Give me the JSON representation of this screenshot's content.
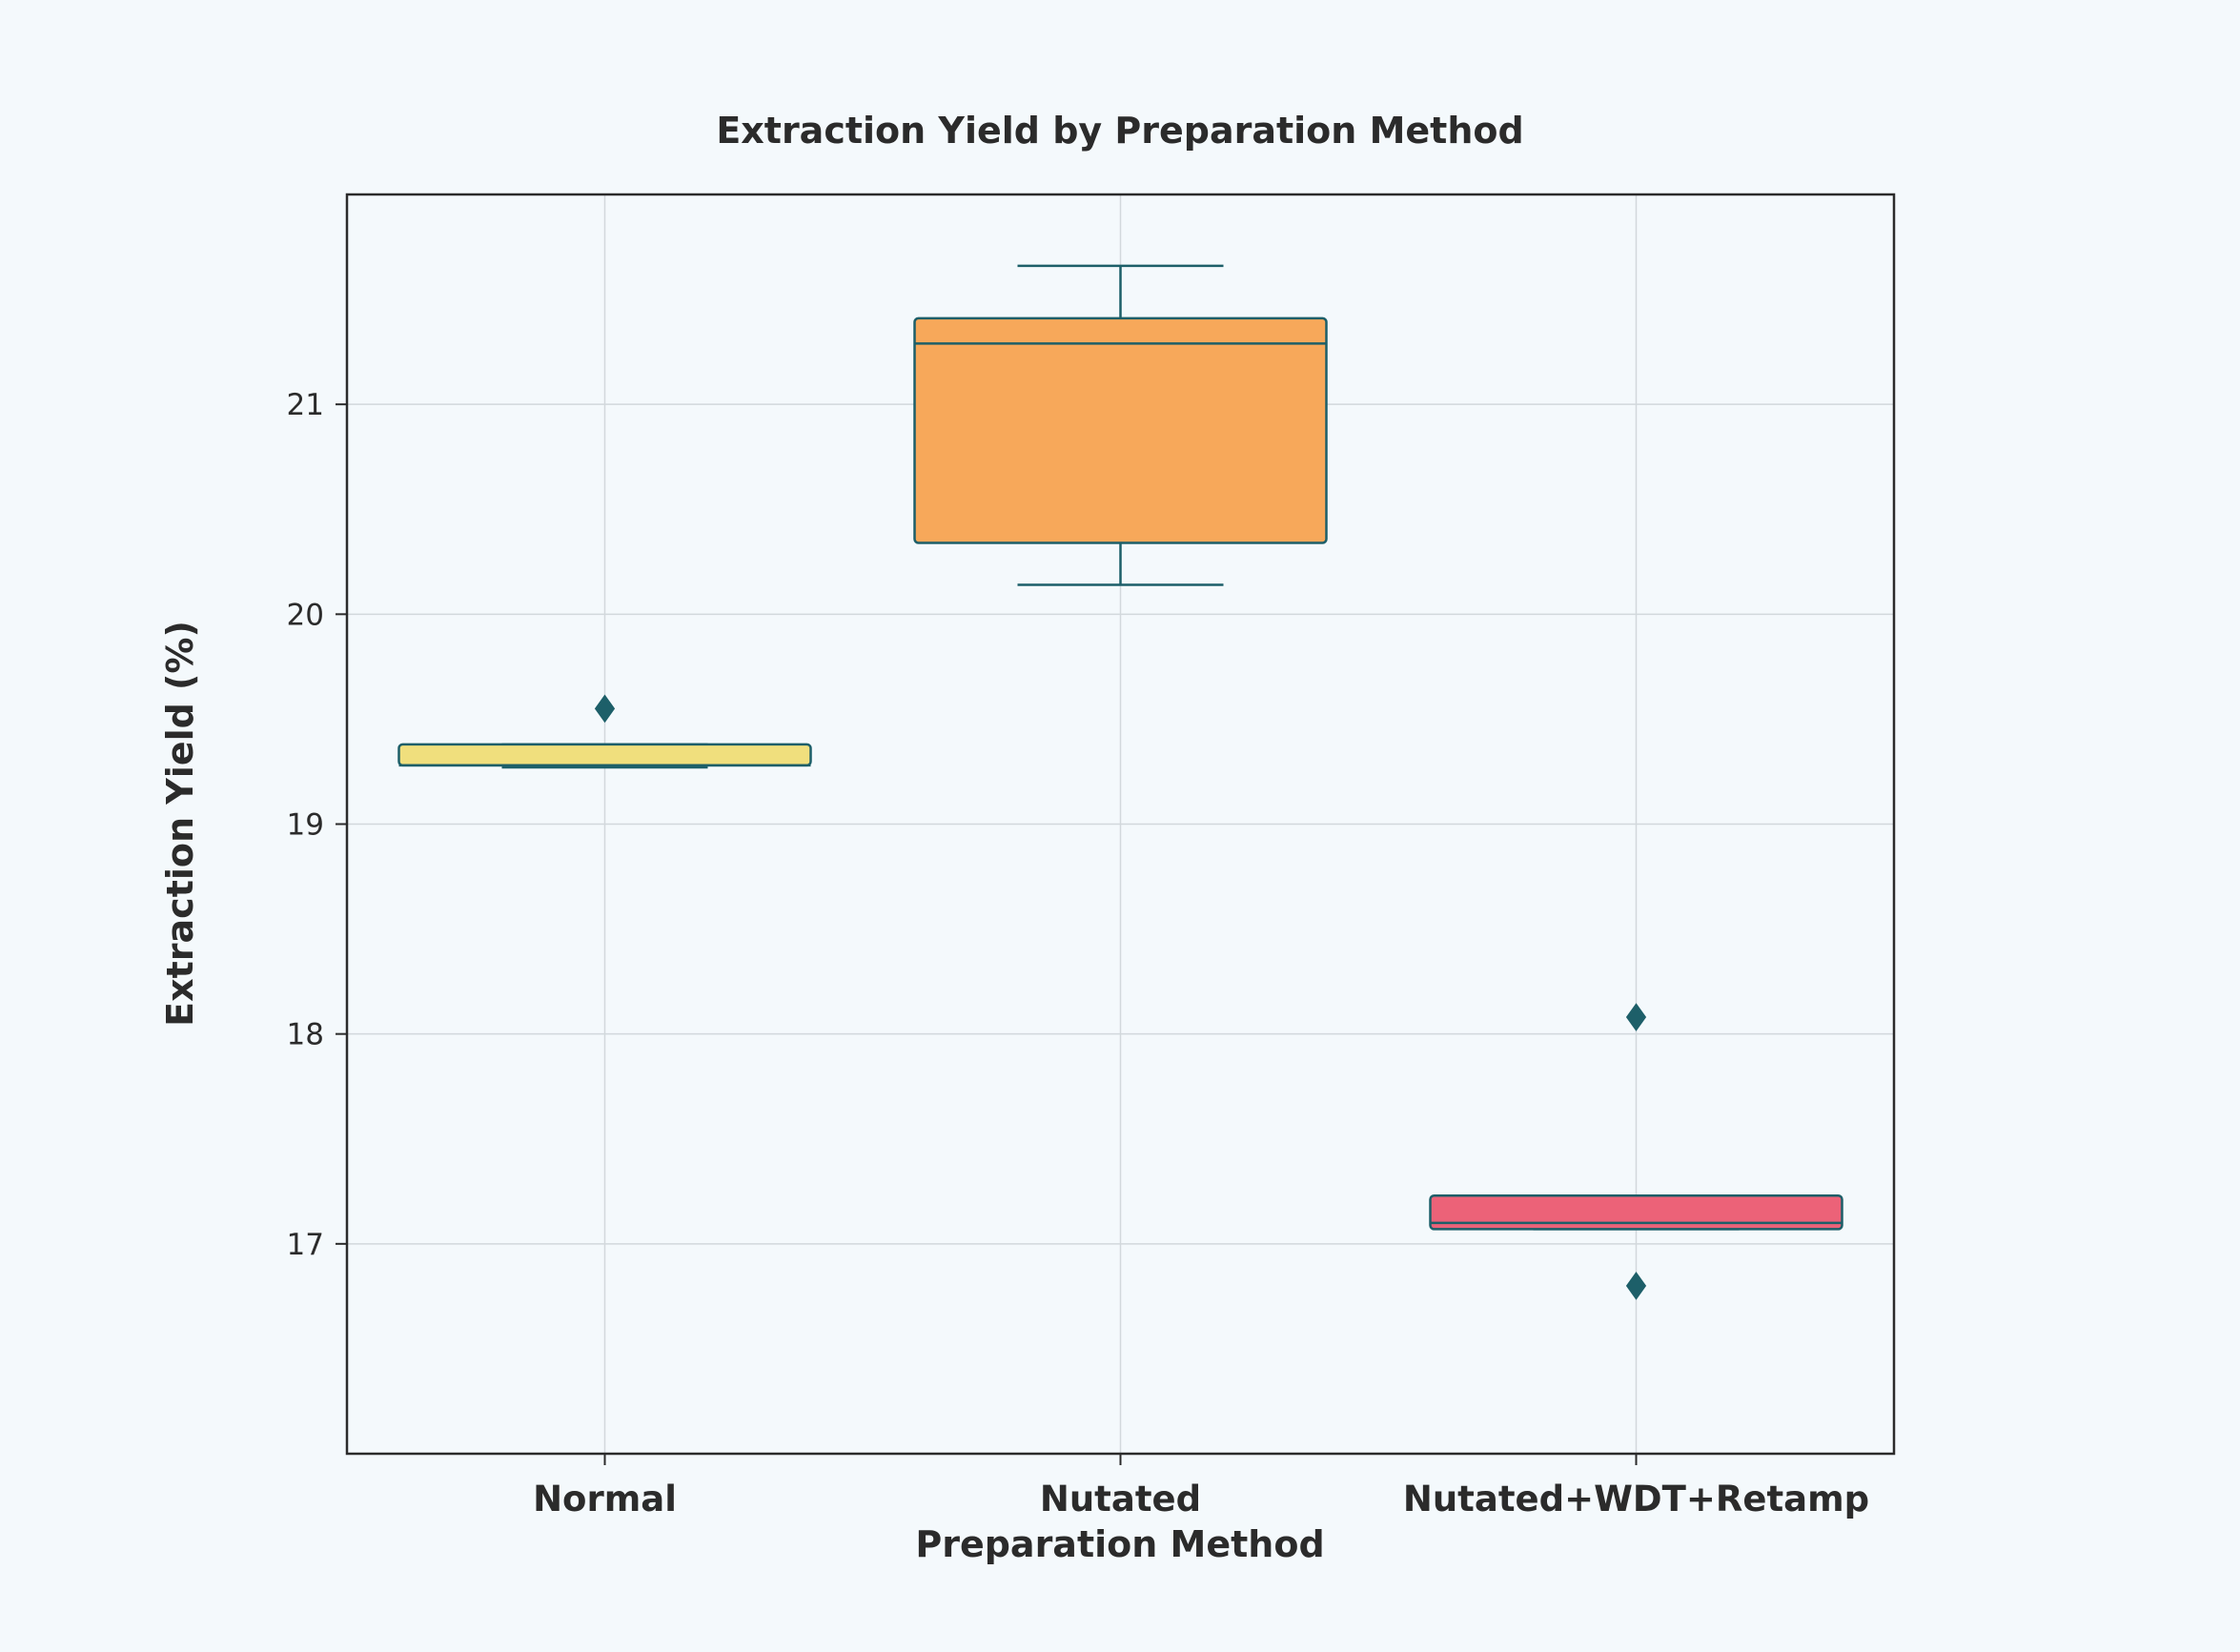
{
  "chart_data": {
    "type": "box",
    "title": "Extraction Yield by Preparation Method",
    "xlabel": "Preparation Method",
    "ylabel": "Extraction Yield (%)",
    "categories": [
      "Normal",
      "Nutated",
      "Nutated+WDT+Retamp"
    ],
    "ylim": [
      16.0,
      22.0
    ],
    "yticks": [
      17,
      18,
      19,
      20,
      21
    ],
    "grid": true,
    "boxes": [
      {
        "category": "Normal",
        "whisker_low": 19.27,
        "q1": 19.28,
        "median": 19.28,
        "q3": 19.38,
        "whisker_high": 19.38,
        "outliers": [
          19.55
        ],
        "color": "#f0df7d"
      },
      {
        "category": "Nutated",
        "whisker_low": 20.14,
        "q1": 20.34,
        "median": 21.29,
        "q3": 21.41,
        "whisker_high": 21.66,
        "outliers": [],
        "color": "#f7a85a"
      },
      {
        "category": "Nutated+WDT+Retamp",
        "whisker_low": 17.07,
        "q1": 17.07,
        "median": 17.1,
        "q3": 17.23,
        "whisker_high": 17.23,
        "outliers": [
          18.08,
          16.8
        ],
        "color": "#ec6278"
      }
    ],
    "edge_color": "#1d5f69"
  }
}
